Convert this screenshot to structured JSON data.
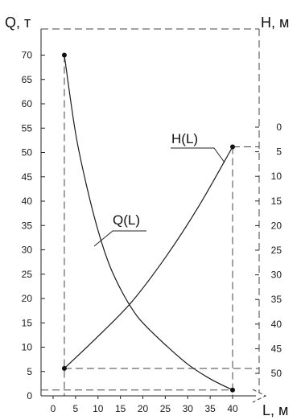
{
  "chart_data": {
    "type": "line",
    "left_axis": {
      "label": "Q, т",
      "range": [
        0,
        70
      ],
      "ticks": [
        0,
        5,
        10,
        15,
        20,
        25,
        30,
        35,
        40,
        45,
        50,
        55,
        60,
        65,
        70
      ],
      "tick_labels": [
        "0",
        "5",
        "10",
        "15",
        "20",
        "25",
        "30",
        "35",
        "40",
        "45",
        "50",
        "55",
        "60",
        "65",
        "70"
      ]
    },
    "right_axis": {
      "label": "H, м",
      "inverted": true,
      "range": [
        0,
        50
      ],
      "ticks": [
        0,
        5,
        10,
        15,
        20,
        25,
        30,
        35,
        40,
        45,
        50
      ],
      "tick_labels": [
        "0",
        "5",
        "10",
        "15",
        "20",
        "25",
        "30",
        "35",
        "40",
        "45",
        "50"
      ]
    },
    "x_axis": {
      "label": "L, м",
      "range": [
        0,
        40
      ],
      "ticks": [
        0,
        5,
        10,
        15,
        20,
        25,
        30,
        35,
        40
      ],
      "tick_labels": [
        "0",
        "5",
        "10",
        "15",
        "20",
        "25",
        "30",
        "35",
        "40"
      ]
    },
    "series": [
      {
        "name": "Q(L)",
        "axis": "left",
        "x": [
          2.5,
          5,
          7.5,
          10,
          12.5,
          15,
          17.5,
          20,
          25,
          30,
          35,
          40
        ],
        "y": [
          70,
          54,
          43,
          34,
          27,
          22,
          18,
          15,
          10.5,
          6.5,
          3.5,
          1.2
        ]
      },
      {
        "name": "H(L)",
        "axis": "right",
        "x": [
          2.5,
          10,
          17.5,
          25,
          32.5,
          40
        ],
        "y": [
          49,
          42.5,
          35.5,
          26.5,
          16,
          4
        ]
      }
    ],
    "grid": false,
    "guides": "dashed"
  }
}
